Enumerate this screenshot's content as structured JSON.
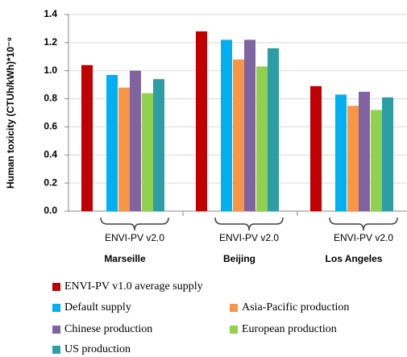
{
  "chart_data": {
    "type": "bar",
    "ylabel": "Human toxicity (CTUh/kWh)*10⁻⁹",
    "categories": [
      "Marseille",
      "Beijing",
      "Los Angeles"
    ],
    "annotations": [
      "ENVI-PV v2.0",
      "ENVI-PV v2.0",
      "ENVI-PV v2.0"
    ],
    "series": [
      {
        "name": "ENVI-PV v1.0 average supply",
        "color": "#c00000",
        "values": [
          1.04,
          1.28,
          0.89
        ]
      },
      {
        "name": "Default supply",
        "color": "#00b0f0",
        "values": [
          0.97,
          1.22,
          0.83
        ]
      },
      {
        "name": "Asia-Pacific production",
        "color": "#f79646",
        "values": [
          0.88,
          1.08,
          0.75
        ]
      },
      {
        "name": "Chinese production",
        "color": "#8064a2",
        "values": [
          1.0,
          1.22,
          0.85
        ]
      },
      {
        "name": "European production",
        "color": "#92d050",
        "values": [
          0.84,
          1.03,
          0.72
        ]
      },
      {
        "name": "US production",
        "color": "#2e9ea6",
        "values": [
          0.94,
          1.16,
          0.81
        ]
      }
    ],
    "ylim": [
      0,
      1.4
    ],
    "yticks": [
      {
        "value": 0,
        "label": "0.0"
      },
      0.2,
      0.4,
      0.6,
      0.8,
      {
        "value": 1,
        "label": "1.0"
      },
      1.2,
      1.4
    ],
    "grid": true
  }
}
